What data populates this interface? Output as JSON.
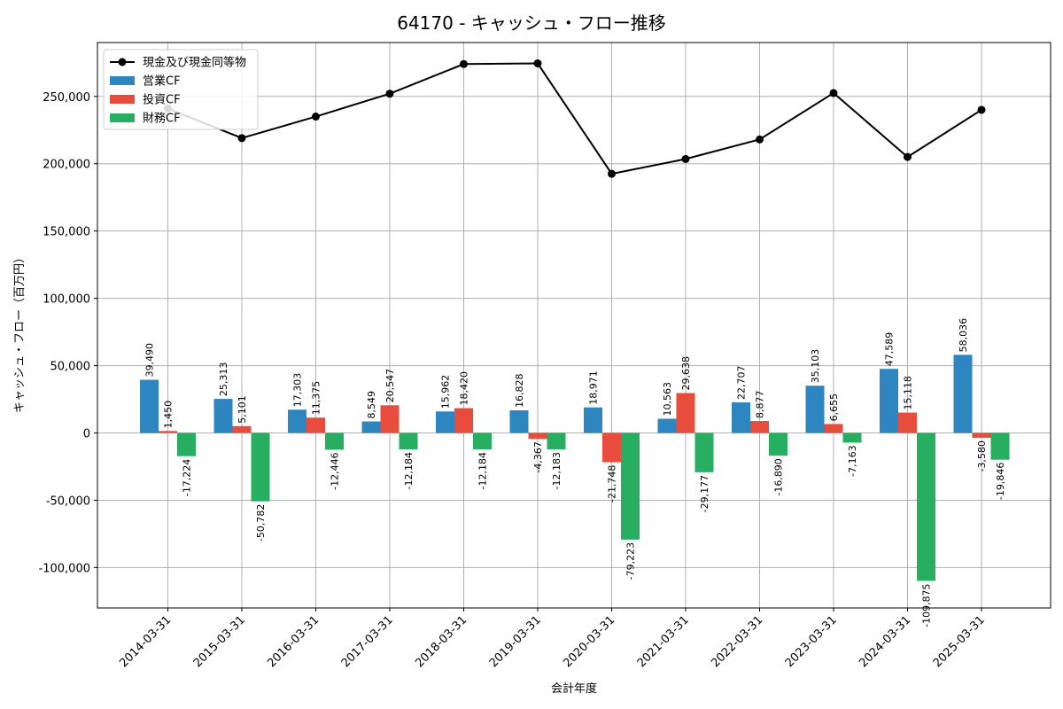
{
  "chart_data": {
    "type": "bar",
    "title": "64170 - キャッシュ・フロー推移",
    "xlabel": "会計年度",
    "ylabel": "キャッシュ・フロー（百万円）",
    "ylim": [
      -130000,
      290000
    ],
    "yticks": [
      -100000,
      -50000,
      0,
      50000,
      100000,
      150000,
      200000,
      250000
    ],
    "ytick_labels": [
      "-100,000",
      "-50,000",
      "0",
      "50,000",
      "100,000",
      "150,000",
      "200,000",
      "250,000"
    ],
    "grid": true,
    "legend_position": "top-left",
    "categories": [
      "2014-03-31",
      "2015-03-31",
      "2016-03-31",
      "2017-03-31",
      "2018-03-31",
      "2019-03-31",
      "2020-03-31",
      "2021-03-31",
      "2022-03-31",
      "2023-03-31",
      "2024-03-31",
      "2025-03-31"
    ],
    "series": [
      {
        "name": "営業CF",
        "kind": "bar",
        "color": "#2e86c1",
        "values": [
          39490,
          25313,
          17303,
          8549,
          15962,
          16828,
          18971,
          10563,
          22707,
          35103,
          47589,
          58036
        ],
        "labels": [
          "39,490",
          "25,313",
          "17,303",
          "8,549",
          "15,962",
          "16,828",
          "18,971",
          "10,563",
          "22,707",
          "35,103",
          "47,589",
          "58,036"
        ]
      },
      {
        "name": "投資CF",
        "kind": "bar",
        "color": "#e74c3c",
        "values": [
          1450,
          5101,
          11375,
          20547,
          18420,
          -4367,
          -21748,
          29638,
          8877,
          6655,
          15118,
          -3580
        ],
        "labels": [
          "1,450",
          "5,101",
          "11,375",
          "20,547",
          "18,420",
          "-4,367",
          "-21,748",
          "29,638",
          "8,877",
          "6,655",
          "15,118",
          "-3,580"
        ]
      },
      {
        "name": "財務CF",
        "kind": "bar",
        "color": "#27ae60",
        "values": [
          -17224,
          -50782,
          -12446,
          -12184,
          -12184,
          -12183,
          -79223,
          -29177,
          -16890,
          -7163,
          -109875,
          -19846
        ],
        "labels": [
          "-17,224",
          "-50,782",
          "-12,446",
          "-12,184",
          "-12,184",
          "-12,183",
          "-79,223",
          "-29,177",
          "-16,890",
          "-7,163",
          "-109,875",
          "-19,846"
        ]
      },
      {
        "name": "現金及び現金同等物",
        "kind": "line",
        "color": "#000000",
        "values": [
          241000,
          219000,
          235000,
          252000,
          274000,
          274500,
          192500,
          203500,
          218000,
          252500,
          205000,
          240000
        ]
      }
    ]
  }
}
